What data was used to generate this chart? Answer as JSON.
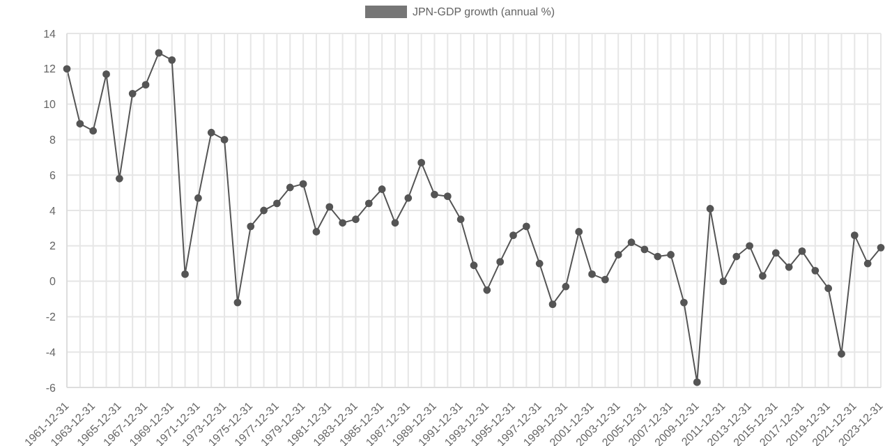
{
  "chart_data": {
    "type": "line",
    "categories": [
      "1961-12-31",
      null,
      "1963-12-31",
      null,
      "1965-12-31",
      null,
      "1967-12-31",
      null,
      "1969-12-31",
      null,
      "1971-12-31",
      null,
      "1973-12-31",
      null,
      "1975-12-31",
      null,
      "1977-12-31",
      null,
      "1979-12-31",
      null,
      "1981-12-31",
      null,
      "1983-12-31",
      null,
      "1985-12-31",
      null,
      "1987-12-31",
      null,
      "1989-12-31",
      null,
      "1991-12-31",
      null,
      "1993-12-31",
      null,
      "1995-12-31",
      null,
      "1997-12-31",
      null,
      "1999-12-31",
      null,
      "2001-12-31",
      null,
      "2003-12-31",
      null,
      "2005-12-31",
      null,
      "2007-12-31",
      null,
      "2009-12-31",
      null,
      "2011-12-31",
      null,
      "2013-12-31",
      null,
      "2015-12-31",
      null,
      "2017-12-31",
      null,
      "2019-12-31",
      null,
      "2021-12-31",
      null,
      "2023-12-31"
    ],
    "series": [
      {
        "name": "JPN-GDP growth (annual %)",
        "color": "#555555",
        "values": [
          12.0,
          8.9,
          8.5,
          11.7,
          5.8,
          10.6,
          11.1,
          12.9,
          12.5,
          0.4,
          4.7,
          8.4,
          8.0,
          -1.2,
          3.1,
          4.0,
          4.4,
          5.3,
          5.5,
          2.8,
          4.2,
          3.3,
          3.5,
          4.4,
          5.2,
          3.3,
          4.7,
          6.7,
          4.9,
          4.8,
          3.5,
          0.9,
          -0.5,
          1.1,
          2.6,
          3.1,
          1.0,
          -1.3,
          -0.3,
          2.8,
          0.4,
          0.1,
          1.5,
          2.2,
          1.8,
          1.4,
          1.5,
          -1.2,
          -5.7,
          4.1,
          0.0,
          1.4,
          2.0,
          0.3,
          1.6,
          0.8,
          1.7,
          0.6,
          -0.4,
          -4.1,
          2.6,
          1.0,
          1.9
        ]
      }
    ],
    "ylim": [
      -6,
      14
    ],
    "yticks": [
      -6,
      -4,
      -2,
      0,
      2,
      4,
      6,
      8,
      10,
      12,
      14
    ],
    "grid": true,
    "legend": "top",
    "marker": "circle",
    "line_style": "solid"
  }
}
